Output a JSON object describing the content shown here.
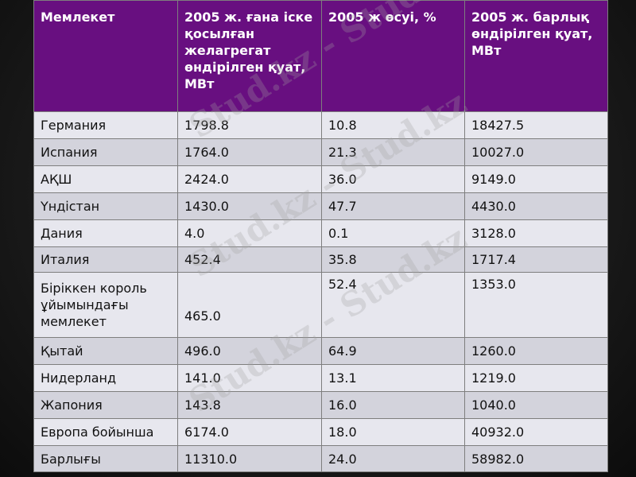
{
  "table": {
    "headers": [
      "Мемлекет",
      "2005 ж. ғана іске қосылған желагрегат өндірілген қуат, МВт",
      "2005 ж өсуі, %",
      "2005 ж. барлық өндірілген қуат, МВт"
    ],
    "rows": [
      [
        "Германия",
        "1798.8",
        "10.8",
        "18427.5"
      ],
      [
        "Испания",
        "1764.0",
        "21.3",
        "10027.0"
      ],
      [
        "АҚШ",
        "2424.0",
        "36.0",
        "9149.0"
      ],
      [
        "Үндістан",
        "1430.0",
        "47.7",
        "4430.0"
      ],
      [
        "Дания",
        "4.0",
        "0.1",
        "3128.0"
      ],
      [
        "Италия",
        "452.4",
        "35.8",
        "1717.4"
      ],
      [
        "Біріккен король ұйымындағы мемлекет",
        "465.0",
        "52.4",
        "1353.0"
      ],
      [
        "Қытай",
        "496.0",
        "64.9",
        "1260.0"
      ],
      [
        "Нидерланд",
        "141.0",
        "13.1",
        "1219.0"
      ],
      [
        "Жапония",
        "143.8",
        "16.0",
        "1040.0"
      ],
      [
        "Европа бойынша",
        "6174.0",
        "18.0",
        "40932.0"
      ],
      [
        "Барлығы",
        "11310.0",
        "24.0",
        "58982.0"
      ]
    ]
  },
  "watermark": {
    "text": "Stud.kz - Stud.kz"
  },
  "colors": {
    "header_bg": "#680f80",
    "row_light": "#e7e7ee",
    "row_dark": "#d3d3dc",
    "background": "#1c1c1c"
  }
}
